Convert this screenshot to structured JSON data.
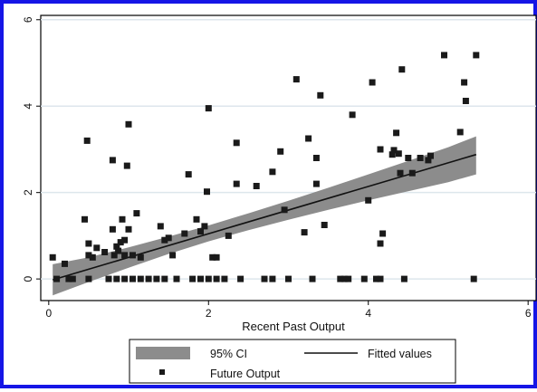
{
  "chart_data": {
    "type": "scatter",
    "xlabel": "Recent Past Output",
    "ylabel": "",
    "xlim": [
      -0.1,
      6.1
    ],
    "ylim": [
      -0.5,
      6.1
    ],
    "x_ticks": [
      0,
      2,
      4,
      6
    ],
    "y_ticks": [
      0,
      2,
      4,
      6
    ],
    "grid": "horizontal",
    "legend_position": "bottom",
    "colors": {
      "points": "#1a1a1a",
      "fit_line": "#111111",
      "ci_band": "#8c8c8c",
      "grid": "#dde6ec",
      "border": "#1515e6"
    },
    "legend": [
      {
        "label": "95% CI",
        "key": "ci"
      },
      {
        "label": "Fitted values",
        "key": "fit"
      },
      {
        "label": "Future Output",
        "key": "points"
      }
    ],
    "fitted_line": {
      "x": [
        0.05,
        5.35
      ],
      "y": [
        -0.02,
        2.88
      ]
    },
    "ci_band": {
      "x": [
        0.05,
        0.5,
        1.0,
        1.5,
        2.0,
        2.5,
        3.0,
        3.5,
        4.0,
        4.5,
        5.0,
        5.35
      ],
      "lower": [
        -0.38,
        -0.07,
        0.26,
        0.58,
        0.87,
        1.13,
        1.37,
        1.6,
        1.82,
        2.03,
        2.24,
        2.42
      ],
      "upper": [
        0.34,
        0.5,
        0.73,
        0.98,
        1.24,
        1.52,
        1.81,
        2.11,
        2.42,
        2.73,
        3.05,
        3.3
      ]
    },
    "points": [
      [
        0.05,
        0.5
      ],
      [
        0.1,
        0.0
      ],
      [
        0.2,
        0.35
      ],
      [
        0.25,
        0.0
      ],
      [
        0.3,
        0.0
      ],
      [
        0.45,
        1.38
      ],
      [
        0.48,
        3.2
      ],
      [
        0.5,
        0.82
      ],
      [
        0.5,
        0.55
      ],
      [
        0.55,
        0.5
      ],
      [
        0.5,
        0.0
      ],
      [
        0.6,
        0.72
      ],
      [
        0.7,
        0.62
      ],
      [
        0.75,
        0.0
      ],
      [
        0.8,
        2.75
      ],
      [
        0.8,
        1.15
      ],
      [
        0.82,
        0.55
      ],
      [
        0.85,
        0.75
      ],
      [
        0.87,
        0.65
      ],
      [
        0.9,
        0.85
      ],
      [
        0.95,
        0.9
      ],
      [
        0.92,
        1.38
      ],
      [
        0.95,
        0.55
      ],
      [
        0.98,
        2.62
      ],
      [
        1.0,
        3.58
      ],
      [
        1.0,
        1.15
      ],
      [
        1.05,
        0.55
      ],
      [
        1.1,
        1.52
      ],
      [
        1.15,
        0.5
      ],
      [
        0.85,
        0.0
      ],
      [
        0.95,
        0.0
      ],
      [
        1.05,
        0.0
      ],
      [
        1.15,
        0.0
      ],
      [
        1.25,
        0.0
      ],
      [
        1.35,
        0.0
      ],
      [
        1.4,
        1.22
      ],
      [
        1.45,
        0.9
      ],
      [
        1.5,
        0.95
      ],
      [
        1.55,
        0.55
      ],
      [
        1.45,
        0.0
      ],
      [
        1.6,
        0.0
      ],
      [
        1.7,
        1.05
      ],
      [
        1.75,
        2.42
      ],
      [
        1.8,
        0.0
      ],
      [
        1.85,
        1.38
      ],
      [
        1.9,
        1.1
      ],
      [
        1.9,
        0.0
      ],
      [
        1.95,
        1.22
      ],
      [
        2.0,
        0.0
      ],
      [
        1.98,
        2.02
      ],
      [
        2.0,
        3.95
      ],
      [
        2.05,
        0.5
      ],
      [
        2.1,
        0.5
      ],
      [
        2.1,
        0.0
      ],
      [
        2.2,
        0.0
      ],
      [
        2.25,
        1.0
      ],
      [
        2.35,
        2.2
      ],
      [
        2.35,
        3.15
      ],
      [
        2.4,
        0.0
      ],
      [
        2.6,
        2.15
      ],
      [
        2.7,
        0.0
      ],
      [
        2.8,
        0.0
      ],
      [
        2.8,
        2.48
      ],
      [
        2.9,
        2.95
      ],
      [
        2.95,
        1.6
      ],
      [
        3.0,
        0.0
      ],
      [
        3.1,
        4.62
      ],
      [
        3.2,
        1.08
      ],
      [
        3.25,
        3.25
      ],
      [
        3.3,
        0.0
      ],
      [
        3.35,
        2.2
      ],
      [
        3.35,
        2.8
      ],
      [
        3.4,
        4.25
      ],
      [
        3.45,
        1.25
      ],
      [
        3.65,
        0.0
      ],
      [
        3.7,
        0.0
      ],
      [
        3.75,
        0.0
      ],
      [
        3.8,
        3.8
      ],
      [
        3.95,
        0.0
      ],
      [
        4.0,
        1.82
      ],
      [
        4.05,
        4.55
      ],
      [
        4.1,
        0.0
      ],
      [
        4.15,
        0.0
      ],
      [
        4.15,
        3.0
      ],
      [
        4.15,
        0.82
      ],
      [
        4.18,
        1.05
      ],
      [
        4.3,
        2.88
      ],
      [
        4.32,
        2.98
      ],
      [
        4.35,
        3.38
      ],
      [
        4.4,
        2.45
      ],
      [
        4.42,
        4.85
      ],
      [
        4.45,
        0.0
      ],
      [
        4.5,
        2.8
      ],
      [
        4.55,
        2.45
      ],
      [
        4.65,
        2.8
      ],
      [
        4.78,
        2.85
      ],
      [
        4.95,
        5.18
      ],
      [
        5.15,
        3.4
      ],
      [
        5.2,
        4.55
      ],
      [
        5.22,
        4.12
      ],
      [
        5.32,
        0.0
      ],
      [
        5.35,
        5.18
      ],
      [
        4.75,
        2.75
      ],
      [
        4.38,
        2.9
      ]
    ]
  }
}
